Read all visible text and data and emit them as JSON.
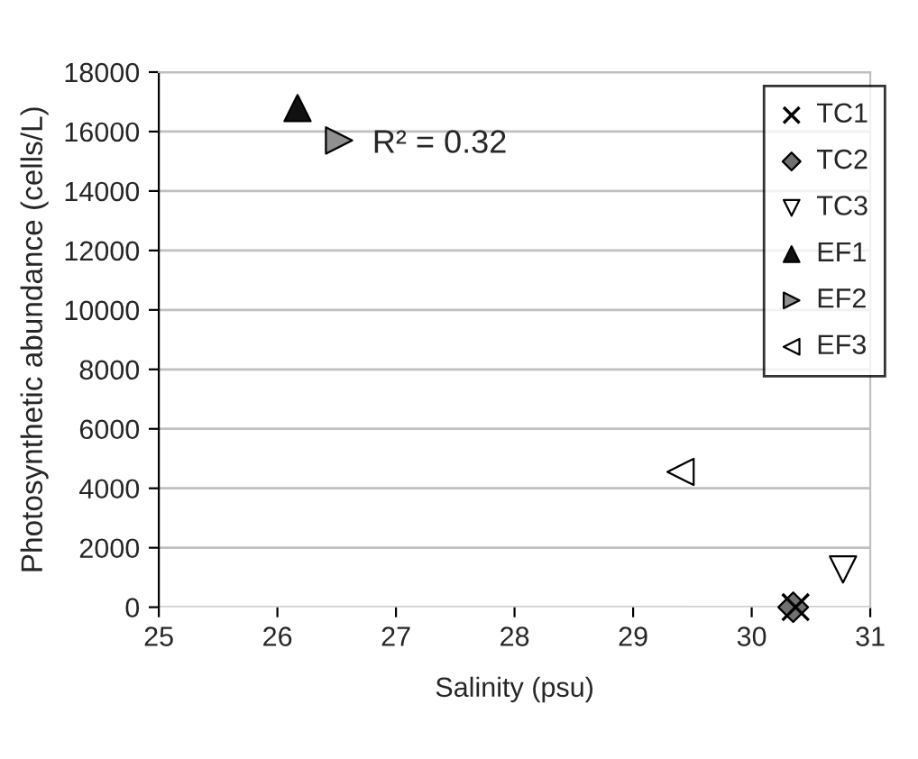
{
  "chart_data": {
    "type": "scatter",
    "xlabel": "Salinity (psu)",
    "ylabel": "Photosynthetic abundance (cells/L)",
    "annotations": [
      "R² = 0.32"
    ],
    "xlim": [
      25,
      31
    ],
    "xticks": [
      25,
      26,
      27,
      28,
      29,
      30,
      31
    ],
    "ylim": [
      0,
      18000
    ],
    "yticks": [
      0,
      2000,
      4000,
      6000,
      8000,
      10000,
      12000,
      14000,
      16000,
      18000
    ],
    "grid": "y",
    "legend": "top right",
    "series": [
      {
        "name": "TC1",
        "color": "#000000",
        "marker": "cross",
        "x": [
          30.37
        ],
        "values": [
          0
        ]
      },
      {
        "name": "TC2",
        "color": "#707070",
        "marker": "diamond",
        "x": [
          30.35
        ],
        "values": [
          0
        ]
      },
      {
        "name": "TC3",
        "color": "#ffffff",
        "marker": "triangle_down",
        "x": [
          30.77
        ],
        "values": [
          1270
        ]
      },
      {
        "name": "EF1",
        "color": "#111111",
        "marker": "triangle",
        "x": [
          26.17
        ],
        "values": [
          16790
        ]
      },
      {
        "name": "EF2",
        "color": "#909090",
        "marker": "triangle_right",
        "x": [
          26.52
        ],
        "values": [
          15700
        ]
      },
      {
        "name": "EF3",
        "color": "#ffffff",
        "marker": "triangle_left",
        "x": [
          29.4
        ],
        "values": [
          4550
        ]
      }
    ]
  }
}
